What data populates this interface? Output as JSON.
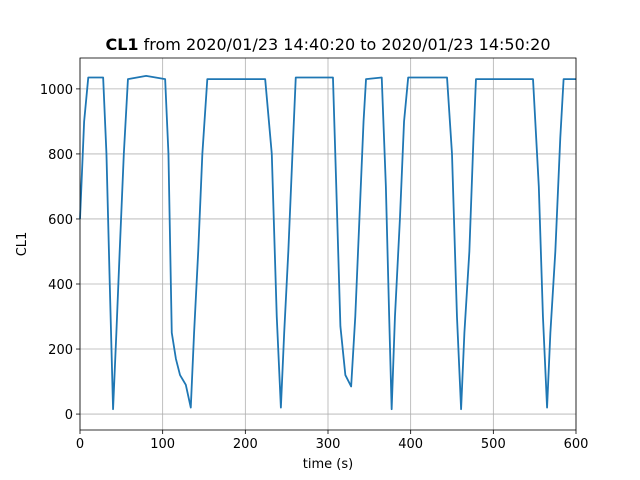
{
  "chart_data": {
    "type": "line",
    "title": [
      "CL1",
      "from 2020/01/23 14:40:20 to 2020/01/23 14:50:20"
    ],
    "xlabel": "time (s)",
    "ylabel": "CL1",
    "xlim": [
      0,
      600
    ],
    "ylim": [
      -49,
      1095
    ],
    "xticks": [
      0,
      100,
      200,
      300,
      400,
      500,
      600
    ],
    "yticks": [
      0,
      200,
      400,
      600,
      800,
      1000
    ],
    "grid": true,
    "x": [
      0,
      5,
      10,
      28,
      32,
      36,
      40,
      44,
      48,
      53,
      58,
      80,
      103,
      107,
      111,
      116,
      121,
      128,
      134,
      138,
      143,
      148,
      154,
      224,
      232,
      238,
      243,
      247,
      252,
      257,
      261,
      306,
      310,
      315,
      321,
      328,
      333,
      338,
      343,
      346,
      365,
      370,
      374,
      377,
      381,
      387,
      392,
      397,
      444,
      450,
      456,
      461,
      465,
      471,
      476,
      479,
      548,
      555,
      560,
      565,
      569,
      575,
      581,
      585,
      600
    ],
    "series": [
      {
        "color": "#1f77b4",
        "values": [
          600,
          900,
          1035,
          1035,
          800,
          400,
          15,
          250,
          500,
          800,
          1030,
          1040,
          1030,
          800,
          250,
          170,
          120,
          90,
          20,
          250,
          500,
          800,
          1030,
          1030,
          800,
          300,
          20,
          250,
          500,
          800,
          1035,
          1035,
          700,
          270,
          120,
          85,
          300,
          600,
          900,
          1030,
          1035,
          700,
          300,
          15,
          300,
          600,
          900,
          1035,
          1035,
          800,
          300,
          15,
          250,
          500,
          850,
          1030,
          1030,
          700,
          300,
          20,
          250,
          500,
          850,
          1030,
          1030
        ]
      }
    ]
  }
}
